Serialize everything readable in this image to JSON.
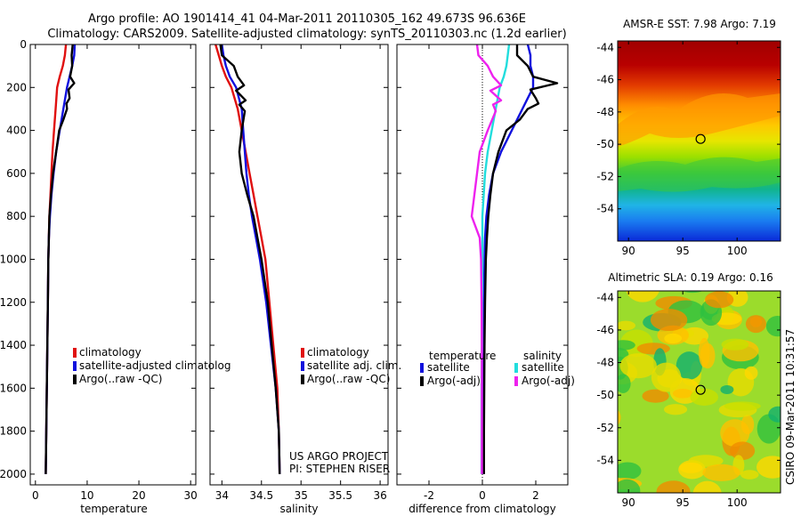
{
  "header": {
    "title_line1": "Argo profile: AO 1901414_41 04-Mar-2011 20110305_162 49.673S 96.636E",
    "title_line2": "Climatology: CARS2009. Satellite-adjusted climatology: synTS_20110303.nc (1.2d earlier)"
  },
  "credit": {
    "side_text": "CSIRO 09-Mar-2011 10:31:57",
    "project_line1": "US ARGO PROJECT",
    "project_line2": "PI: STEPHEN RISER"
  },
  "colors": {
    "climatology": "#e01010",
    "satellite": "#1010dd",
    "argo": "#000000",
    "salinity_satellite": "#22dddd",
    "salinity_argo": "#ee22ee"
  },
  "chart_data": [
    {
      "type": "line",
      "xlabel": "temperature",
      "ylabel": "",
      "xlim": [
        -1,
        31
      ],
      "ylim": [
        2050,
        0
      ],
      "x_ticks": [
        0,
        10,
        20,
        30
      ],
      "y_ticks": [
        0,
        200,
        400,
        600,
        800,
        1000,
        1200,
        1400,
        1600,
        1800,
        2000
      ],
      "legend": [
        "climatology",
        "satellite-adjusted climatolog",
        "Argo(..raw -QC)"
      ],
      "series": [
        {
          "name": "climatology",
          "color": "#e01010",
          "points": [
            [
              5.9,
              0
            ],
            [
              5.7,
              50
            ],
            [
              5.3,
              100
            ],
            [
              4.7,
              150
            ],
            [
              4.2,
              200
            ],
            [
              3.9,
              300
            ],
            [
              3.6,
              400
            ],
            [
              3.3,
              500
            ],
            [
              3.1,
              600
            ],
            [
              2.9,
              700
            ],
            [
              2.7,
              800
            ],
            [
              2.6,
              900
            ],
            [
              2.5,
              1000
            ],
            [
              2.4,
              1200
            ],
            [
              2.3,
              1400
            ],
            [
              2.2,
              1600
            ],
            [
              2.1,
              1800
            ],
            [
              2.0,
              2000
            ]
          ]
        },
        {
          "name": "satellite-adjusted climatolog",
          "color": "#1010dd",
          "points": [
            [
              7.6,
              0
            ],
            [
              7.5,
              50
            ],
            [
              7.1,
              100
            ],
            [
              6.6,
              150
            ],
            [
              6.1,
              200
            ],
            [
              5.4,
              300
            ],
            [
              4.7,
              400
            ],
            [
              4.0,
              500
            ],
            [
              3.5,
              600
            ],
            [
              3.1,
              700
            ],
            [
              2.8,
              800
            ],
            [
              2.6,
              900
            ],
            [
              2.5,
              1000
            ],
            [
              2.4,
              1200
            ],
            [
              2.3,
              1400
            ],
            [
              2.2,
              1600
            ],
            [
              2.1,
              1800
            ],
            [
              2.0,
              2000
            ]
          ]
        },
        {
          "name": "Argo(..raw -QC)",
          "color": "#000000",
          "points": [
            [
              7.2,
              0
            ],
            [
              7.0,
              50
            ],
            [
              7.1,
              100
            ],
            [
              6.7,
              150
            ],
            [
              7.5,
              180
            ],
            [
              6.4,
              210
            ],
            [
              6.6,
              250
            ],
            [
              6.0,
              275
            ],
            [
              6.1,
              300
            ],
            [
              5.4,
              350
            ],
            [
              4.6,
              400
            ],
            [
              4.0,
              500
            ],
            [
              3.4,
              600
            ],
            [
              3.0,
              700
            ],
            [
              2.7,
              800
            ],
            [
              2.6,
              900
            ],
            [
              2.5,
              1000
            ],
            [
              2.4,
              1200
            ],
            [
              2.3,
              1400
            ],
            [
              2.2,
              1600
            ],
            [
              2.1,
              1800
            ],
            [
              2.0,
              2000
            ]
          ]
        }
      ]
    },
    {
      "type": "line",
      "xlabel": "salinity",
      "ylabel": "",
      "xlim": [
        33.85,
        36.1
      ],
      "ylim": [
        2050,
        0
      ],
      "x_ticks": [
        34,
        34.5,
        35,
        35.5,
        36
      ],
      "legend": [
        "climatology",
        "satellite adj. clim.",
        "Argo(..raw -QC)"
      ],
      "series": [
        {
          "name": "climatology",
          "color": "#e01010",
          "points": [
            [
              33.92,
              0
            ],
            [
              33.96,
              50
            ],
            [
              34.0,
              100
            ],
            [
              34.05,
              150
            ],
            [
              34.12,
              200
            ],
            [
              34.2,
              300
            ],
            [
              34.25,
              400
            ],
            [
              34.3,
              500
            ],
            [
              34.35,
              600
            ],
            [
              34.4,
              700
            ],
            [
              34.45,
              800
            ],
            [
              34.5,
              900
            ],
            [
              34.55,
              1000
            ],
            [
              34.6,
              1200
            ],
            [
              34.65,
              1400
            ],
            [
              34.7,
              1600
            ],
            [
              34.72,
              1800
            ],
            [
              34.73,
              2000
            ]
          ]
        },
        {
          "name": "satellite adj. clim.",
          "color": "#1010dd",
          "points": [
            [
              34.0,
              0
            ],
            [
              34.02,
              50
            ],
            [
              34.05,
              100
            ],
            [
              34.1,
              150
            ],
            [
              34.18,
              200
            ],
            [
              34.25,
              300
            ],
            [
              34.27,
              400
            ],
            [
              34.29,
              500
            ],
            [
              34.31,
              600
            ],
            [
              34.34,
              700
            ],
            [
              34.38,
              800
            ],
            [
              34.43,
              900
            ],
            [
              34.48,
              1000
            ],
            [
              34.56,
              1200
            ],
            [
              34.62,
              1400
            ],
            [
              34.68,
              1600
            ],
            [
              34.72,
              1800
            ],
            [
              34.73,
              2000
            ]
          ]
        },
        {
          "name": "Argo(..raw -QC)",
          "color": "#000000",
          "points": [
            [
              33.98,
              0
            ],
            [
              34.0,
              50
            ],
            [
              34.15,
              100
            ],
            [
              34.2,
              150
            ],
            [
              34.28,
              190
            ],
            [
              34.18,
              215
            ],
            [
              34.3,
              260
            ],
            [
              34.22,
              280
            ],
            [
              34.29,
              310
            ],
            [
              34.25,
              400
            ],
            [
              34.22,
              500
            ],
            [
              34.25,
              600
            ],
            [
              34.32,
              700
            ],
            [
              34.4,
              800
            ],
            [
              34.45,
              900
            ],
            [
              34.5,
              1000
            ],
            [
              34.58,
              1200
            ],
            [
              34.63,
              1400
            ],
            [
              34.68,
              1600
            ],
            [
              34.72,
              1800
            ],
            [
              34.73,
              2000
            ]
          ]
        }
      ]
    },
    {
      "type": "line",
      "xlabel": "difference from climatology",
      "ylabel": "",
      "xlim": [
        -3.2,
        3.2
      ],
      "ylim": [
        2050,
        0
      ],
      "x_ticks": [
        -2,
        0,
        2
      ],
      "legend_groups": [
        {
          "title": "temperature",
          "items": [
            "satellite",
            "Argo(-adj)"
          ]
        },
        {
          "title": "salinity",
          "items": [
            "satellite",
            "Argo(-adj)"
          ]
        }
      ],
      "series": [
        {
          "name": "temperature satellite",
          "color": "#1010dd",
          "points": [
            [
              1.7,
              0
            ],
            [
              1.8,
              50
            ],
            [
              1.8,
              100
            ],
            [
              1.9,
              150
            ],
            [
              1.9,
              200
            ],
            [
              1.5,
              300
            ],
            [
              1.1,
              400
            ],
            [
              0.7,
              500
            ],
            [
              0.4,
              600
            ],
            [
              0.25,
              700
            ],
            [
              0.15,
              800
            ],
            [
              0.1,
              900
            ],
            [
              0.08,
              1000
            ],
            [
              0.06,
              1200
            ],
            [
              0.06,
              1400
            ],
            [
              0.05,
              1600
            ],
            [
              0.05,
              1800
            ],
            [
              0.05,
              2000
            ]
          ]
        },
        {
          "name": "temperature Argo(-adj)",
          "color": "#000000",
          "points": [
            [
              1.3,
              0
            ],
            [
              1.3,
              50
            ],
            [
              1.7,
              100
            ],
            [
              1.9,
              150
            ],
            [
              2.8,
              180
            ],
            [
              1.8,
              210
            ],
            [
              2.0,
              250
            ],
            [
              2.1,
              275
            ],
            [
              1.7,
              300
            ],
            [
              1.4,
              350
            ],
            [
              0.9,
              400
            ],
            [
              0.6,
              500
            ],
            [
              0.4,
              600
            ],
            [
              0.3,
              700
            ],
            [
              0.22,
              800
            ],
            [
              0.17,
              900
            ],
            [
              0.13,
              1000
            ],
            [
              0.1,
              1200
            ],
            [
              0.08,
              1400
            ],
            [
              0.07,
              1600
            ],
            [
              0.06,
              1800
            ],
            [
              0.06,
              2000
            ]
          ]
        },
        {
          "name": "salinity satellite",
          "color": "#22dddd",
          "points": [
            [
              1.0,
              0
            ],
            [
              0.95,
              50
            ],
            [
              0.9,
              100
            ],
            [
              0.8,
              150
            ],
            [
              0.65,
              200
            ],
            [
              0.5,
              300
            ],
            [
              0.35,
              400
            ],
            [
              0.2,
              500
            ],
            [
              0.1,
              600
            ],
            [
              0.05,
              700
            ],
            [
              0.0,
              800
            ],
            [
              0.0,
              1000
            ],
            [
              -0.02,
              1200
            ],
            [
              -0.02,
              1400
            ],
            [
              -0.03,
              1600
            ],
            [
              -0.03,
              1800
            ],
            [
              -0.03,
              2000
            ]
          ]
        },
        {
          "name": "salinity Argo(-adj)",
          "color": "#ee22ee",
          "points": [
            [
              -0.2,
              0
            ],
            [
              -0.15,
              50
            ],
            [
              0.2,
              100
            ],
            [
              0.4,
              150
            ],
            [
              0.7,
              190
            ],
            [
              0.3,
              215
            ],
            [
              0.7,
              260
            ],
            [
              0.4,
              280
            ],
            [
              0.5,
              310
            ],
            [
              0.2,
              400
            ],
            [
              -0.1,
              500
            ],
            [
              -0.2,
              600
            ],
            [
              -0.3,
              700
            ],
            [
              -0.4,
              800
            ],
            [
              -0.1,
              900
            ],
            [
              -0.05,
              1000
            ],
            [
              -0.03,
              1200
            ],
            [
              -0.02,
              1400
            ],
            [
              -0.02,
              1600
            ],
            [
              -0.02,
              1800
            ],
            [
              -0.02,
              2000
            ]
          ]
        }
      ]
    },
    {
      "type": "heatmap",
      "title": "AMSR-E SST: 7.98 Argo: 7.19",
      "x_ticks": [
        90,
        95,
        100
      ],
      "y_ticks": [
        -44,
        -46,
        -48,
        -50,
        -52,
        -54
      ],
      "xlim": [
        89,
        104
      ],
      "ylim": [
        -56,
        -43.6
      ],
      "marker": {
        "lon": 96.636,
        "lat": -49.673
      }
    },
    {
      "type": "heatmap",
      "title": "Altimetric SLA: 0.19 Argo: 0.16",
      "x_ticks": [
        90,
        95,
        100
      ],
      "y_ticks": [
        -44,
        -46,
        -48,
        -50,
        -52,
        -54
      ],
      "xlim": [
        89,
        104
      ],
      "ylim": [
        -56,
        -43.6
      ],
      "marker": {
        "lon": 96.636,
        "lat": -49.673
      }
    }
  ]
}
